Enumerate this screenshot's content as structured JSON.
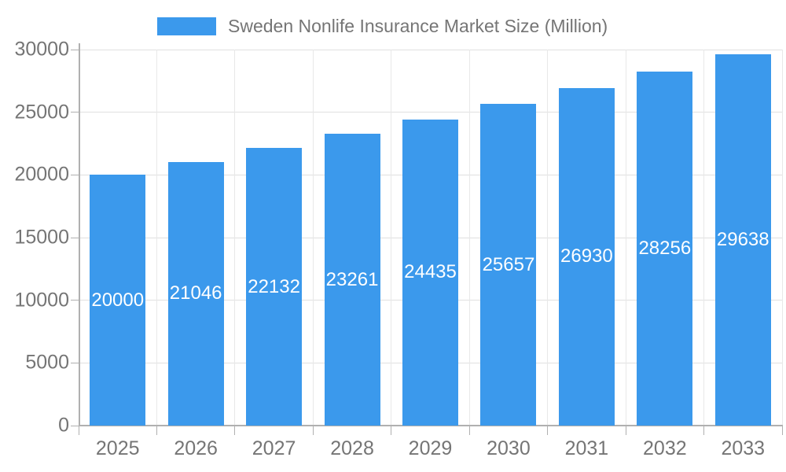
{
  "chart_data": {
    "type": "bar",
    "title": "Sweden Nonlife Insurance Market Size (Million)",
    "legend": [
      "Sweden Nonlife Insurance Market Size (Million)"
    ],
    "legend_position": "top",
    "categories": [
      "2025",
      "2026",
      "2027",
      "2028",
      "2029",
      "2030",
      "2031",
      "2032",
      "2033"
    ],
    "values": [
      20000,
      21046,
      22132,
      23261,
      24435,
      25657,
      26930,
      28256,
      29638
    ],
    "xlabel": "",
    "ylabel": "",
    "ylim": [
      0,
      30000
    ],
    "yticks": [
      0,
      5000,
      10000,
      15000,
      20000,
      25000,
      30000
    ],
    "grid": true,
    "colors": {
      "bar": "#3B99EC",
      "bar_label": "#ffffff",
      "axis_text": "#757575",
      "axis_line": "#b0b0b0",
      "grid_h": "#e0e0e0",
      "grid_v": "#e8e8e8",
      "background": "#ffffff"
    }
  }
}
